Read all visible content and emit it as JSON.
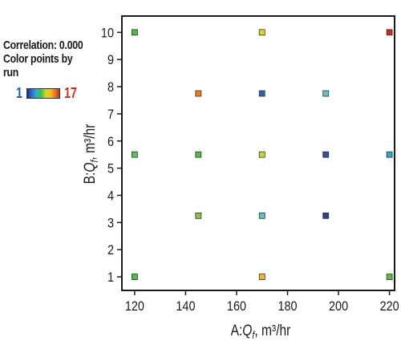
{
  "legend": {
    "correlation": "Correlation: 0.000",
    "color_label_1": "Color points by",
    "color_label_2": "run",
    "scale_min": "1",
    "scale_max": "17"
  },
  "chart_data": {
    "type": "scatter",
    "xlabel": "A:Q_f, m³/hr",
    "ylabel": "B:Q_f, m³/hr",
    "xlabel_parts": {
      "prefix": "A:",
      "var": "Q",
      "sub": "f",
      "unit": ", m³/hr"
    },
    "ylabel_parts": {
      "prefix": "B:",
      "var": "Q",
      "sub": "f",
      "unit": ", m³/hr"
    },
    "xlim": [
      115,
      222
    ],
    "ylim": [
      0.5,
      10.6
    ],
    "xticks": [
      120,
      140,
      160,
      180,
      200,
      220
    ],
    "yticks": [
      1,
      2,
      3,
      4,
      5,
      6,
      7,
      8,
      9,
      10
    ],
    "grid": false,
    "color_by": "run",
    "color_range": [
      1,
      17
    ],
    "points": [
      {
        "x": 120,
        "y": 10,
        "color": "#4fba48"
      },
      {
        "x": 170,
        "y": 10,
        "color": "#e3d21f"
      },
      {
        "x": 220,
        "y": 10,
        "color": "#d42a1e"
      },
      {
        "x": 145,
        "y": 7.75,
        "color": "#ef7a1a"
      },
      {
        "x": 170,
        "y": 7.75,
        "color": "#2f5fb8"
      },
      {
        "x": 195,
        "y": 7.75,
        "color": "#5cc4cf"
      },
      {
        "x": 120,
        "y": 5.5,
        "color": "#5dc25a"
      },
      {
        "x": 145,
        "y": 5.5,
        "color": "#57b844"
      },
      {
        "x": 170,
        "y": 5.5,
        "color": "#cfd52e"
      },
      {
        "x": 195,
        "y": 5.5,
        "color": "#2c4fa6"
      },
      {
        "x": 220,
        "y": 5.5,
        "color": "#2ea5d8"
      },
      {
        "x": 145,
        "y": 3.25,
        "color": "#8cc63f"
      },
      {
        "x": 170,
        "y": 3.25,
        "color": "#56c4c0"
      },
      {
        "x": 195,
        "y": 3.25,
        "color": "#2c3f9c"
      },
      {
        "x": 120,
        "y": 1,
        "color": "#56b84b"
      },
      {
        "x": 170,
        "y": 1,
        "color": "#f2b52a"
      },
      {
        "x": 220,
        "y": 1,
        "color": "#5dbb4a"
      }
    ]
  }
}
